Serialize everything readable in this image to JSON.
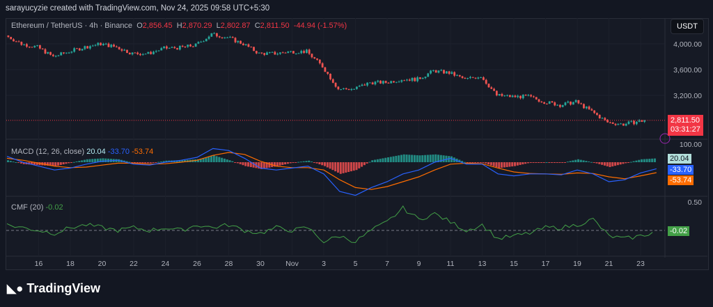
{
  "credit": "sarayucyzie created with TradingView.com, Nov 24, 2025 09:58 UTC+5:30",
  "legend": {
    "symbol": "Ethereum / TetherUS · 4h · Binance",
    "o_label": "O",
    "o": "2,856.45",
    "h_label": "H",
    "h": "2,870.29",
    "l_label": "L",
    "l": "2,802.87",
    "c_label": "C",
    "c": "2,811.50",
    "change": "-44.94 (-1.57%)"
  },
  "currency": "USDT",
  "last_price": "2,811.50",
  "countdown": "03:31:27",
  "macd": {
    "title": "MACD (12, 26, close)",
    "hist": "20.04",
    "macd": "-33.70",
    "signal": "-53.74"
  },
  "cmf": {
    "title": "CMF (20)",
    "value": "-0.02"
  },
  "logo": "TradingView",
  "colors": {
    "up": "#26a69a",
    "down": "#ef5350",
    "macd": "#2962ff",
    "signal": "#ff6d00",
    "cmf": "#43a047",
    "price_tag": "#f23645"
  },
  "chart_data": [
    {
      "type": "candlestick",
      "interval": "4h",
      "price_ticks": [
        "4,000.00",
        "3,600.00",
        "3,200.00"
      ],
      "x_ticks": [
        "16",
        "18",
        "20",
        "22",
        "24",
        "26",
        "28",
        "30",
        "Nov",
        "3",
        "5",
        "7",
        "9",
        "11",
        "13",
        "15",
        "17",
        "19",
        "21",
        "23"
      ],
      "daily_close_approx": {
        "dates": [
          "Oct 14",
          "Oct 15",
          "Oct 16",
          "Oct 17",
          "Oct 18",
          "Oct 19",
          "Oct 20",
          "Oct 21",
          "Oct 22",
          "Oct 23",
          "Oct 24",
          "Oct 25",
          "Oct 26",
          "Oct 27",
          "Oct 28",
          "Oct 29",
          "Oct 30",
          "Oct 31",
          "Nov 1",
          "Nov 2",
          "Nov 3",
          "Nov 4",
          "Nov 5",
          "Nov 6",
          "Nov 7",
          "Nov 8",
          "Nov 9",
          "Nov 10",
          "Nov 11",
          "Nov 12",
          "Nov 13",
          "Nov 14",
          "Nov 15",
          "Nov 16",
          "Nov 17",
          "Nov 18",
          "Nov 19",
          "Nov 20",
          "Nov 21",
          "Nov 22",
          "Nov 23",
          "Nov 24"
        ],
        "close": [
          4130,
          4000,
          3950,
          3800,
          3880,
          3950,
          4000,
          3950,
          3850,
          3850,
          3930,
          3940,
          3980,
          4150,
          4100,
          4000,
          3850,
          3850,
          3880,
          3880,
          3650,
          3300,
          3300,
          3400,
          3400,
          3450,
          3450,
          3580,
          3550,
          3450,
          3500,
          3200,
          3180,
          3180,
          3100,
          3050,
          3100,
          2950,
          2780,
          2750,
          2800,
          2811.5
        ]
      }
    },
    {
      "type": "line",
      "name": "MACD (12, 26, close)",
      "y_ticks": [
        "100.00"
      ],
      "macd": [
        30,
        0,
        -20,
        -40,
        -30,
        -10,
        5,
        10,
        -10,
        -15,
        0,
        10,
        25,
        70,
        60,
        20,
        -30,
        -40,
        -30,
        -20,
        -60,
        -150,
        -170,
        -130,
        -100,
        -60,
        -40,
        0,
        20,
        -10,
        -10,
        -60,
        -70,
        -60,
        -60,
        -65,
        -40,
        -60,
        -100,
        -90,
        -55,
        -33.7
      ],
      "signal": [
        20,
        10,
        -5,
        -20,
        -28,
        -25,
        -15,
        -5,
        -5,
        -10,
        -8,
        0,
        10,
        35,
        50,
        40,
        5,
        -20,
        -28,
        -28,
        -40,
        -90,
        -130,
        -140,
        -125,
        -100,
        -75,
        -40,
        -10,
        -5,
        -8,
        -30,
        -50,
        -58,
        -60,
        -62,
        -55,
        -58,
        -75,
        -85,
        -70,
        -53.74
      ]
    },
    {
      "type": "line",
      "name": "CMF (20)",
      "y_ticks": [
        "0.50"
      ],
      "cmf": [
        0.1,
        0.05,
        0.0,
        -0.05,
        0.05,
        0.1,
        0.05,
        0.0,
        0.05,
        0.0,
        0.05,
        0.0,
        0.1,
        0.05,
        0.1,
        0.0,
        -0.05,
        0.05,
        0.0,
        0.05,
        -0.2,
        -0.1,
        -0.2,
        0.0,
        0.15,
        0.4,
        0.2,
        0.3,
        0.15,
        0.0,
        0.1,
        -0.15,
        -0.1,
        -0.05,
        0.05,
        0.05,
        0.1,
        0.2,
        -0.1,
        -0.15,
        -0.1,
        -0.02
      ]
    }
  ]
}
